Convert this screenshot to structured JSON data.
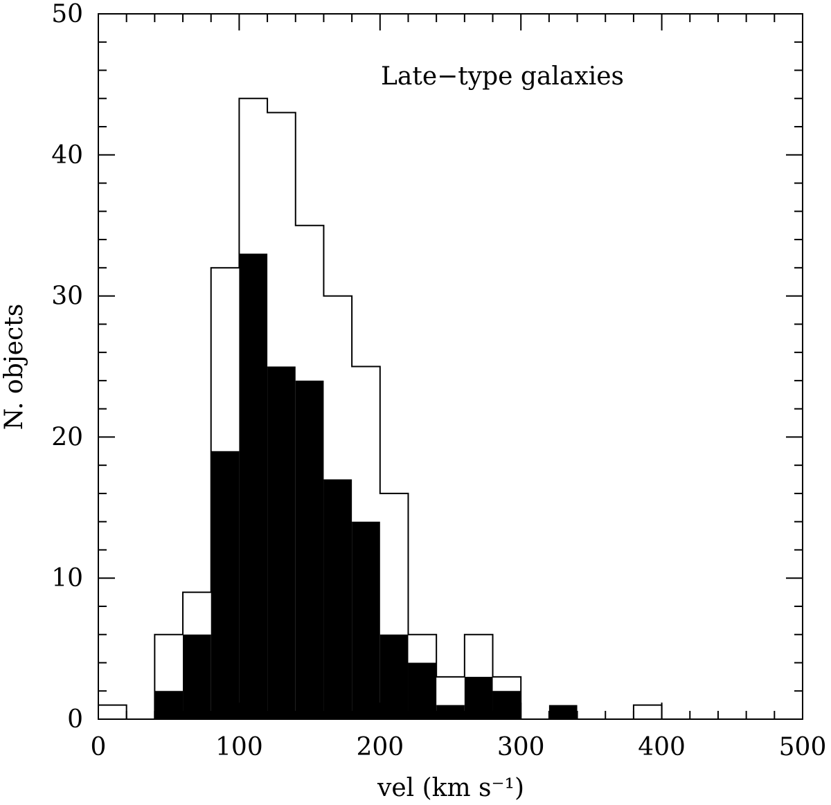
{
  "chart_data": {
    "type": "histogram",
    "annotation": "Late−type galaxies",
    "xlabel": "vel  (km s⁻¹)",
    "ylabel": "N. objects",
    "xlim": [
      0,
      500
    ],
    "ylim": [
      0,
      50
    ],
    "bin_width": 20,
    "x_ticks": [
      0,
      100,
      200,
      300,
      400,
      500
    ],
    "y_ticks": [
      0,
      10,
      20,
      30,
      40,
      50
    ],
    "x_minor_step": 20,
    "y_minor_step": 2,
    "grid": false,
    "series": [
      {
        "style": "outline",
        "color": "#000000",
        "bins": [
          {
            "x0": 0,
            "x1": 20,
            "count": 1
          },
          {
            "x0": 20,
            "x1": 40,
            "count": 0
          },
          {
            "x0": 40,
            "x1": 60,
            "count": 6
          },
          {
            "x0": 60,
            "x1": 80,
            "count": 9
          },
          {
            "x0": 80,
            "x1": 100,
            "count": 32
          },
          {
            "x0": 100,
            "x1": 120,
            "count": 44
          },
          {
            "x0": 120,
            "x1": 140,
            "count": 43
          },
          {
            "x0": 140,
            "x1": 160,
            "count": 35
          },
          {
            "x0": 160,
            "x1": 180,
            "count": 30
          },
          {
            "x0": 180,
            "x1": 200,
            "count": 25
          },
          {
            "x0": 200,
            "x1": 220,
            "count": 16
          },
          {
            "x0": 220,
            "x1": 240,
            "count": 6
          },
          {
            "x0": 240,
            "x1": 260,
            "count": 3
          },
          {
            "x0": 260,
            "x1": 280,
            "count": 6
          },
          {
            "x0": 280,
            "x1": 300,
            "count": 3
          },
          {
            "x0": 300,
            "x1": 320,
            "count": 0
          },
          {
            "x0": 320,
            "x1": 340,
            "count": 0
          },
          {
            "x0": 340,
            "x1": 360,
            "count": 0
          },
          {
            "x0": 360,
            "x1": 380,
            "count": 0
          },
          {
            "x0": 380,
            "x1": 400,
            "count": 1
          }
        ]
      },
      {
        "style": "filled",
        "color": "#000000",
        "bins": [
          {
            "x0": 40,
            "x1": 60,
            "count": 2
          },
          {
            "x0": 60,
            "x1": 80,
            "count": 6
          },
          {
            "x0": 80,
            "x1": 100,
            "count": 19
          },
          {
            "x0": 100,
            "x1": 120,
            "count": 33
          },
          {
            "x0": 120,
            "x1": 140,
            "count": 25
          },
          {
            "x0": 140,
            "x1": 160,
            "count": 24
          },
          {
            "x0": 160,
            "x1": 180,
            "count": 17
          },
          {
            "x0": 180,
            "x1": 200,
            "count": 14
          },
          {
            "x0": 200,
            "x1": 220,
            "count": 6
          },
          {
            "x0": 220,
            "x1": 240,
            "count": 4
          },
          {
            "x0": 240,
            "x1": 260,
            "count": 1
          },
          {
            "x0": 260,
            "x1": 280,
            "count": 3
          },
          {
            "x0": 280,
            "x1": 300,
            "count": 2
          },
          {
            "x0": 320,
            "x1": 340,
            "count": 1
          }
        ]
      }
    ]
  }
}
